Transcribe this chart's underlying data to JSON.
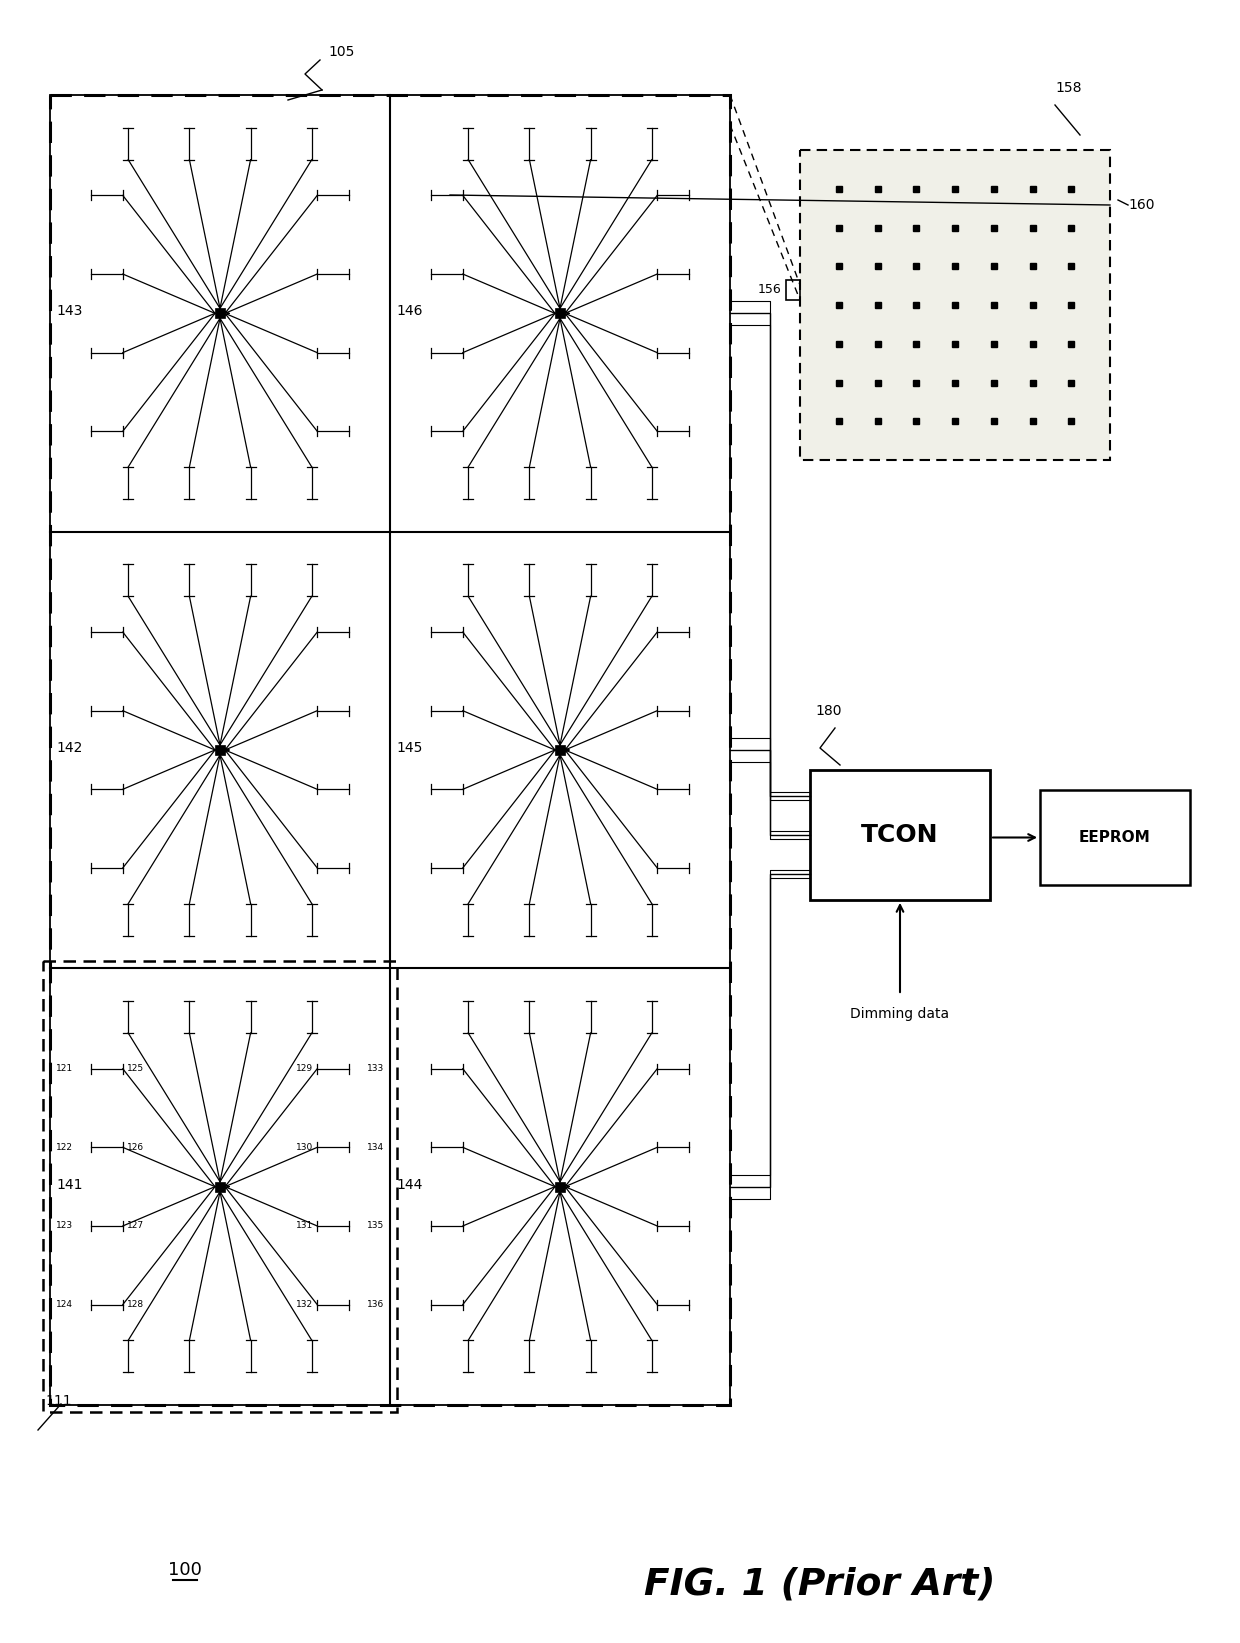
{
  "bg_color": "#ffffff",
  "lc": "#000000",
  "title": "FIG. 1 (Prior Art)",
  "fig_label": "100",
  "panel_label": "105",
  "module_label": "111",
  "driver_labels": {
    "top_left": "143",
    "top_right": "146",
    "mid_left": "142",
    "mid_right": "145",
    "bot_left": "141",
    "bot_right": "144"
  },
  "led_labels_141": {
    "outer_left": [
      "121",
      "122",
      "123",
      "124"
    ],
    "inner_left": [
      "125",
      "126",
      "127",
      "128"
    ],
    "inner_right": [
      "129",
      "130",
      "131",
      "132"
    ],
    "outer_right": [
      "133",
      "134",
      "135",
      "136"
    ]
  },
  "tcon_text": "TCON",
  "tcon_label": "180",
  "eeprom_text": "EEPROM",
  "dimming_text": "Dimming data",
  "px_label": "158",
  "px_conn_label": "156",
  "px_side_label": "160",
  "lw_main": 1.5,
  "lw_dashed": 1.5,
  "cell_lw": 1.3
}
